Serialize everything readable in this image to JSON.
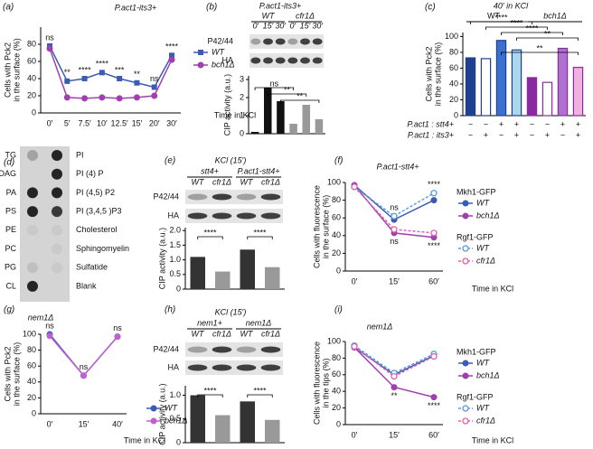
{
  "chart_data": [
    {
      "type": "line",
      "panel": "(a)",
      "title": "P.act1-its3+",
      "ylabel": [
        "Cells with Pck2",
        "in the surface (%)"
      ],
      "xlabel": "Time in KCl",
      "categories": [
        "0′",
        "5′",
        "7.5′",
        "10′",
        "12.5′",
        "15′",
        "20′",
        "30′"
      ],
      "series": [
        {
          "name": "WT",
          "color": "#3b5bb5",
          "marker": "square",
          "values": [
            78,
            37,
            40,
            47,
            40,
            35,
            30,
            67
          ]
        },
        {
          "name": "bch1Δ",
          "color": "#a040b0",
          "marker": "circle",
          "values": [
            75,
            18,
            17,
            18,
            17,
            18,
            20,
            62
          ]
        }
      ],
      "annotations": [
        "ns",
        "**",
        "****",
        "****",
        "***",
        "**",
        "ns",
        "****"
      ],
      "ylim": [
        0,
        100
      ],
      "yticks": [
        0,
        20,
        40,
        60,
        80
      ]
    },
    {
      "type": "bar",
      "panel": "(b)",
      "title": "P.act1-its3+",
      "ylabel": [
        "CIP activity (a.u.)"
      ],
      "blot": {
        "groups": [
          "WT",
          "cfr1Δ"
        ],
        "lanes": [
          "0′",
          "15′",
          "30′",
          "0′",
          "15′",
          "30′"
        ],
        "rows": [
          "P42/44",
          "HA"
        ]
      },
      "values": [
        0.1,
        2.55,
        1.8,
        0.55,
        1.6,
        0.8
      ],
      "colors": [
        "#111",
        "#111",
        "#111",
        "#999",
        "#999",
        "#999"
      ],
      "significance": [
        "ns",
        "**",
        "**"
      ],
      "ylim": [
        0,
        3.2
      ],
      "yticks": [
        0,
        1,
        2,
        3
      ]
    },
    {
      "type": "bar",
      "panel": "(c)",
      "title": "40′ in KCl",
      "ylabel": [
        "Cells with Pck2",
        "in the surface (%)"
      ],
      "groups": [
        "WT",
        "bch1Δ"
      ],
      "values": [
        73,
        72,
        95,
        83,
        48,
        42,
        85,
        61
      ],
      "colors": [
        "#1f3f8f",
        "#ffffff",
        "#3b6fd0",
        "#a9d8ec",
        "#8a2aa0",
        "#ffffff",
        "#b070d0",
        "#f0b0e0"
      ],
      "edgecolors": [
        "#1f3f8f",
        "#1f3f8f",
        "#1f3f8f",
        "#1f3f8f",
        "#8a2aa0",
        "#8a2aa0",
        "#8a2aa0",
        "#8a2aa0"
      ],
      "table": {
        "rows": [
          "P.act1 : stt4+",
          "P.act1 : its3+"
        ],
        "cells": [
          [
            "−",
            "−",
            "+",
            "+",
            "−",
            "−",
            "+",
            "+"
          ],
          [
            "−",
            "+",
            "−",
            "+",
            "−",
            "+",
            "−",
            "+"
          ]
        ]
      },
      "significance": [
        "****",
        "****",
        "****",
        "**",
        "**"
      ],
      "ylim": [
        0,
        105
      ],
      "yticks": [
        0,
        20,
        40,
        60,
        80,
        100
      ]
    },
    {
      "type": "bar",
      "panel": "(e)",
      "title": "KCl (15′)",
      "ylabel": [
        "CIP activity (a.u.)"
      ],
      "blot": {
        "groups": [
          "stt4+",
          "P.act1-stt4+"
        ],
        "lanes": [
          "WT",
          "cfr1Δ",
          "WT",
          "cfr1Δ"
        ],
        "rows": [
          "P42/44",
          "HA"
        ]
      },
      "values": [
        1.1,
        0.6,
        1.35,
        0.75
      ],
      "colors": [
        "#333",
        "#999",
        "#333",
        "#999"
      ],
      "significance": [
        "****",
        "****"
      ],
      "ylim": [
        0,
        2.1
      ],
      "yticks": [
        0,
        0.5,
        {
          "value": 1,
          "label": "1.0"
        },
        1.5,
        {
          "value": 2,
          "label": "2.0"
        }
      ]
    },
    {
      "type": "line",
      "panel": "(f)",
      "title": "P.act1-stt4+",
      "ylabel": [
        "Cells with fluorescence",
        "in the surface (%)"
      ],
      "xlabel": "Time in KCl",
      "categories": [
        "0′",
        "15′",
        "60′"
      ],
      "legend_titles": [
        "Mkh1-GFP",
        "Rgf1-GFP"
      ],
      "series": [
        {
          "name": "WT",
          "color": "#3b5bb5",
          "marker": "circle",
          "values": [
            97,
            58,
            80
          ]
        },
        {
          "name": "bch1Δ",
          "color": "#a040b0",
          "marker": "circle",
          "values": [
            97,
            43,
            38
          ]
        },
        {
          "name": "WT",
          "color": "#5b9bd5",
          "marker": "open",
          "dashed": true,
          "values": [
            95,
            62,
            88
          ]
        },
        {
          "name": "cfr1Δ",
          "color": "#e060b0",
          "marker": "open",
          "dashed": true,
          "values": [
            95,
            47,
            43
          ]
        }
      ],
      "annotations": [
        "ns",
        "ns",
        "****",
        "****"
      ],
      "ylim": [
        0,
        100
      ],
      "yticks": [
        0,
        20,
        40,
        60,
        80,
        100
      ]
    },
    {
      "type": "line",
      "panel": "(g)",
      "title": "nem1Δ",
      "ylabel": [
        "Cells with Pck2",
        "in the surface (%)"
      ],
      "xlabel": "Time in KCl",
      "categories": [
        "0′",
        "15′",
        "40′"
      ],
      "series": [
        {
          "name": "WT",
          "color": "#3b5bb5",
          "marker": "circle",
          "values": [
            100,
            48,
            97
          ]
        },
        {
          "name": "bch1Δ",
          "color": "#c060d0",
          "marker": "circle",
          "values": [
            98,
            48,
            97
          ]
        }
      ],
      "annotations": [
        "ns",
        "ns",
        "ns"
      ],
      "ylim": [
        0,
        100
      ],
      "yticks": [
        0,
        20,
        40,
        60,
        80,
        100
      ]
    },
    {
      "type": "bar",
      "panel": "(h)",
      "title": "KCl (15′)",
      "ylabel": [
        "CIP activity (a.u.)"
      ],
      "blot": {
        "groups": [
          "nem1+",
          "nem1Δ"
        ],
        "lanes": [
          "WT",
          "cfr1Δ",
          "WT",
          "cfr1Δ"
        ],
        "rows": [
          "P42/44",
          "HA"
        ]
      },
      "values": [
        1.0,
        0.58,
        0.87,
        0.48
      ],
      "colors": [
        "#333",
        "#999",
        "#333",
        "#999"
      ],
      "significance": [
        "****",
        "****"
      ],
      "ylim": [
        0,
        1.2
      ],
      "yticks": [
        0,
        0.5,
        {
          "value": 1,
          "label": "1.0"
        }
      ]
    },
    {
      "type": "line",
      "panel": "(i)",
      "title": "nem1Δ",
      "ylabel": [
        "Cells with fluorescence",
        "in the tips (%)"
      ],
      "xlabel": "Time in KCl",
      "categories": [
        "0′",
        "15′",
        "60′"
      ],
      "legend_titles": [
        "Mkh1-GFP",
        "Rgf1-GFP"
      ],
      "series": [
        {
          "name": "WT",
          "color": "#3b5bb5",
          "marker": "circle",
          "values": [
            93,
            60,
            83
          ]
        },
        {
          "name": "bch1Δ",
          "color": "#a040b0",
          "marker": "circle",
          "values": [
            93,
            45,
            33
          ]
        },
        {
          "name": "WT",
          "color": "#5b9bd5",
          "marker": "open",
          "dashed": true,
          "values": [
            95,
            62,
            85
          ]
        },
        {
          "name": "cfr1Δ",
          "color": "#e060b0",
          "marker": "open",
          "dashed": true,
          "values": [
            94,
            58,
            82
          ]
        }
      ],
      "annotations": [
        "**",
        "****"
      ],
      "ylim": [
        0,
        100
      ],
      "yticks": [
        0,
        20,
        40,
        60,
        80,
        100
      ]
    }
  ],
  "lipid_strip": {
    "panel": "(d)",
    "left": [
      "TG",
      "DAG",
      "PA",
      "PS",
      "PE",
      "PC",
      "PG",
      "CL"
    ],
    "right": [
      "PI",
      "PI (4) P",
      "PI (4,5) P2",
      "PI (3,4,5 )P3",
      "Cholesterol",
      "Sphingomyelin",
      "Sulfatide",
      "Blank"
    ]
  }
}
